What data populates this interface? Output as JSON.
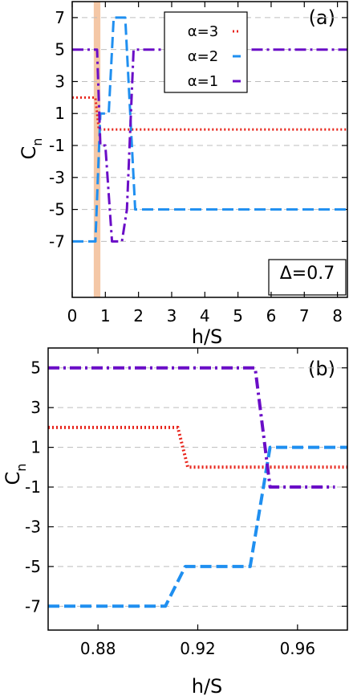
{
  "chart_data": [
    {
      "type": "line",
      "panel_label": "(a)",
      "xlabel": "h/S",
      "ylabel": "C",
      "ylabel_sub": "n",
      "xlim": [
        0,
        8.3
      ],
      "ylim": [
        -10.5,
        8
      ],
      "xticks": [
        0,
        1,
        2,
        3,
        4,
        5,
        6,
        7,
        8
      ],
      "xtick_labels": [
        "0",
        "1",
        "2",
        "3",
        "4",
        "5",
        "6",
        "7",
        "8"
      ],
      "yticks": [
        -7,
        -5,
        -3,
        -1,
        1,
        3,
        5,
        7
      ],
      "ytick_labels": [
        "-7",
        "-5",
        "-3",
        "-1",
        "1",
        "3",
        "5",
        "7"
      ],
      "grid": "horizontal dashed",
      "legend_position": "top-right",
      "annotation": "Δ=0.7",
      "shaded_region": {
        "x": [
          0.65,
          0.85
        ],
        "color": "#f4c7a6"
      },
      "series": [
        {
          "name": "α=3",
          "color": "#e8231a",
          "style": "dotted",
          "points": [
            [
              0,
              2
            ],
            [
              0.7,
              2
            ],
            [
              0.8,
              0
            ],
            [
              8.3,
              0
            ]
          ]
        },
        {
          "name": "α=2",
          "color": "#1f8ff0",
          "style": "dashed",
          "points": [
            [
              0,
              -7
            ],
            [
              0.7,
              -7
            ],
            [
              0.85,
              1
            ],
            [
              1.1,
              1
            ],
            [
              1.25,
              7
            ],
            [
              1.6,
              7
            ],
            [
              1.75,
              1
            ],
            [
              1.9,
              -5
            ],
            [
              8.3,
              -5
            ]
          ]
        },
        {
          "name": "α=1",
          "color": "#6a0dc7",
          "style": "dashdot",
          "points": [
            [
              0,
              5
            ],
            [
              0.75,
              5
            ],
            [
              0.85,
              -1
            ],
            [
              1.0,
              -1
            ],
            [
              1.2,
              -7
            ],
            [
              1.5,
              -7
            ],
            [
              1.65,
              -5
            ],
            [
              1.85,
              5
            ],
            [
              8.3,
              5
            ]
          ]
        }
      ]
    },
    {
      "type": "line",
      "panel_label": "(b)",
      "xlabel": "h/S",
      "ylabel": "C",
      "ylabel_sub": "n",
      "xlim": [
        0.86,
        0.98
      ],
      "ylim": [
        -8.2,
        6
      ],
      "xticks": [
        0.88,
        0.92,
        0.96
      ],
      "xtick_labels": [
        "0.88",
        "0.92",
        "0.96"
      ],
      "yticks": [
        -7,
        -5,
        -3,
        -1,
        1,
        3,
        5
      ],
      "ytick_labels": [
        "-7",
        "-5",
        "-3",
        "-1",
        "1",
        "3",
        "5"
      ],
      "grid": "horizontal dashed",
      "series": [
        {
          "name": "α=3",
          "color": "#e8231a",
          "style": "dotted",
          "points": [
            [
              0.86,
              2
            ],
            [
              0.912,
              2
            ],
            [
              0.916,
              0
            ],
            [
              0.98,
              0
            ]
          ]
        },
        {
          "name": "α=2",
          "color": "#1f8ff0",
          "style": "dashed",
          "points": [
            [
              0.86,
              -7
            ],
            [
              0.907,
              -7
            ],
            [
              0.915,
              -5
            ],
            [
              0.941,
              -5
            ],
            [
              0.949,
              1
            ],
            [
              0.98,
              1
            ]
          ]
        },
        {
          "name": "α=1",
          "color": "#6a0dc7",
          "style": "dashdot",
          "points": [
            [
              0.86,
              5
            ],
            [
              0.943,
              5
            ],
            [
              0.949,
              -1
            ],
            [
              0.975,
              -1
            ]
          ]
        }
      ]
    }
  ]
}
